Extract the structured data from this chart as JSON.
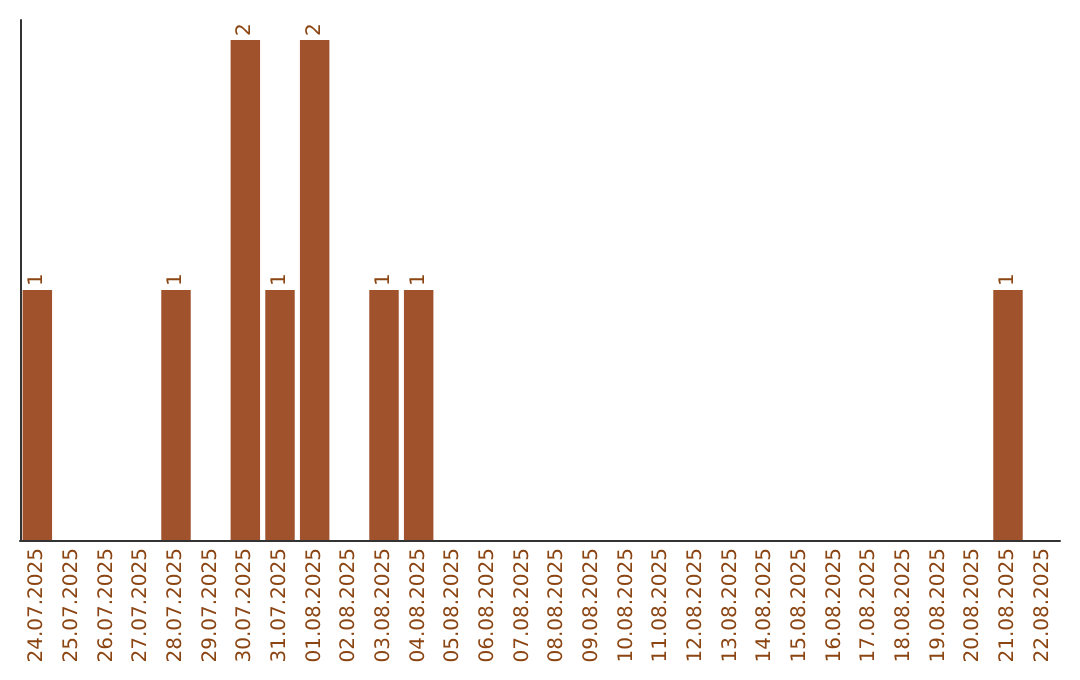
{
  "chart_data": {
    "type": "bar",
    "categories": [
      "24.07.2025",
      "25.07.2025",
      "26.07.2025",
      "27.07.2025",
      "28.07.2025",
      "29.07.2025",
      "30.07.2025",
      "31.07.2025",
      "01.08.2025",
      "02.08.2025",
      "03.08.2025",
      "04.08.2025",
      "05.08.2025",
      "06.08.2025",
      "07.08.2025",
      "08.08.2025",
      "09.08.2025",
      "10.08.2025",
      "11.08.2025",
      "12.08.2025",
      "13.08.2025",
      "14.08.2025",
      "15.08.2025",
      "16.08.2025",
      "17.08.2025",
      "18.08.2025",
      "19.08.2025",
      "20.08.2025",
      "21.08.2025",
      "22.08.2025"
    ],
    "values": [
      1,
      0,
      0,
      0,
      1,
      0,
      2,
      1,
      2,
      0,
      1,
      1,
      0,
      0,
      0,
      0,
      0,
      0,
      0,
      0,
      0,
      0,
      0,
      0,
      0,
      0,
      0,
      0,
      1,
      0
    ],
    "value_labels": [
      "1",
      null,
      null,
      null,
      "1",
      null,
      "2",
      "1",
      "2",
      null,
      "1",
      "1",
      null,
      null,
      null,
      null,
      null,
      null,
      null,
      null,
      null,
      null,
      null,
      null,
      null,
      null,
      null,
      null,
      "1",
      null
    ],
    "color": "#a0522d",
    "grid": false
  }
}
